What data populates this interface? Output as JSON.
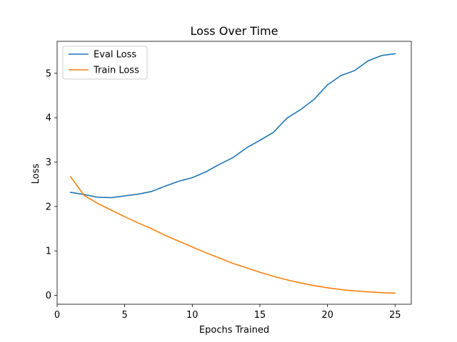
{
  "chart_data": {
    "type": "line",
    "title": "Loss Over Time",
    "xlabel": "Epochs Trained",
    "ylabel": "Loss",
    "xlim": [
      0,
      26.2
    ],
    "ylim": [
      -0.2,
      5.72
    ],
    "xticks": [
      0,
      5,
      10,
      15,
      20,
      25
    ],
    "yticks": [
      0,
      1,
      2,
      3,
      4,
      5
    ],
    "grid": false,
    "legend_position": "upper left",
    "x": [
      1,
      2,
      3,
      4,
      5,
      6,
      7,
      8,
      9,
      10,
      11,
      12,
      13,
      14,
      15,
      16,
      17,
      18,
      19,
      20,
      21,
      22,
      23,
      24,
      25
    ],
    "series": [
      {
        "name": "Eval Loss",
        "color": "#1f77b4",
        "values": [
          2.32,
          2.27,
          2.21,
          2.2,
          2.24,
          2.28,
          2.34,
          2.46,
          2.57,
          2.65,
          2.78,
          2.95,
          3.1,
          3.32,
          3.49,
          3.67,
          3.99,
          4.18,
          4.41,
          4.74,
          4.95,
          5.06,
          5.28,
          5.4,
          5.44
        ]
      },
      {
        "name": "Train Loss",
        "color": "#ff7f0e",
        "values": [
          2.67,
          2.25,
          2.07,
          1.92,
          1.77,
          1.63,
          1.5,
          1.35,
          1.22,
          1.09,
          0.96,
          0.84,
          0.72,
          0.62,
          0.52,
          0.43,
          0.35,
          0.28,
          0.22,
          0.17,
          0.13,
          0.1,
          0.08,
          0.06,
          0.05
        ]
      }
    ]
  }
}
